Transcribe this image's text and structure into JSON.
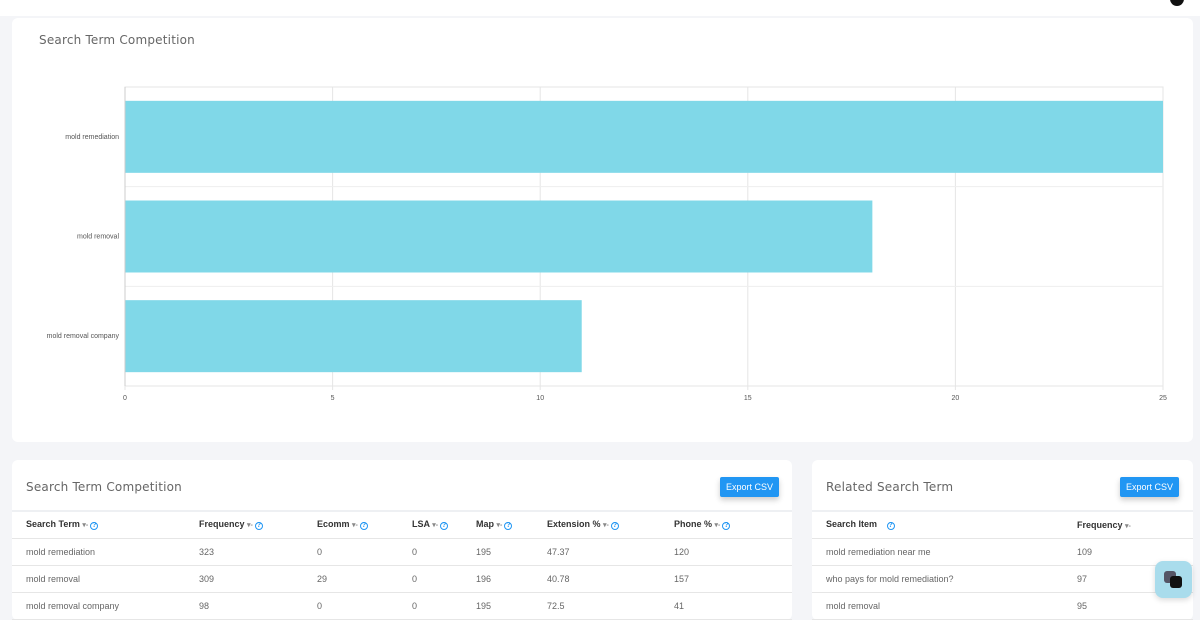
{
  "chart_card": {
    "title": "Search Term Competition"
  },
  "chart_data": {
    "type": "bar",
    "orientation": "horizontal",
    "categories": [
      "mold remediation",
      "mold removal",
      "mold removal company"
    ],
    "values": [
      25,
      18,
      11
    ],
    "xlim": [
      0,
      25
    ],
    "xticks": [
      "0",
      "5",
      "10",
      "15",
      "20",
      "25"
    ],
    "grid": true,
    "color": "#80d8e8"
  },
  "competition_table": {
    "title": "Search Term Competition",
    "export_label": "Export CSV",
    "columns": [
      "Search Term",
      "Frequency",
      "Ecomm",
      "LSA",
      "Map",
      "Extension %",
      "Phone %"
    ],
    "rows": [
      [
        "mold remediation",
        "323",
        "0",
        "0",
        "195",
        "47.37",
        "120"
      ],
      [
        "mold removal",
        "309",
        "29",
        "0",
        "196",
        "40.78",
        "157"
      ],
      [
        "mold removal company",
        "98",
        "0",
        "0",
        "195",
        "72.5",
        "41"
      ]
    ]
  },
  "related_table": {
    "title": "Related Search Term",
    "export_label": "Export CSV",
    "columns": [
      "Search Item",
      "Frequency"
    ],
    "rows": [
      [
        "mold remediation near me",
        "109"
      ],
      [
        "who pays for mold remediation?",
        "97"
      ],
      [
        "mold removal",
        "95"
      ]
    ]
  }
}
